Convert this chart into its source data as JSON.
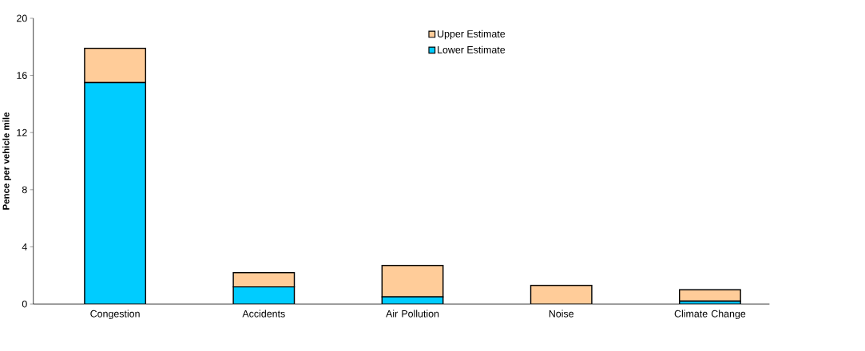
{
  "chart_data": {
    "type": "bar",
    "stacked": true,
    "categories": [
      "Congestion",
      "Accidents",
      "Air Pollution",
      "Noise",
      "Climate Change"
    ],
    "series": [
      {
        "name": "Lower Estimate",
        "color": "#00ccff",
        "values": [
          15.5,
          1.2,
          0.5,
          0,
          0.2
        ]
      },
      {
        "name": "Upper Estimate",
        "color": "#ffcc99",
        "values": [
          2.4,
          1.0,
          2.2,
          1.3,
          0.8
        ]
      }
    ],
    "ylabel": "Pence per vehicle mile",
    "ylim": [
      0,
      20
    ],
    "yticks": [
      0,
      4,
      8,
      12,
      16,
      20
    ],
    "legend": "top",
    "grid": false
  }
}
